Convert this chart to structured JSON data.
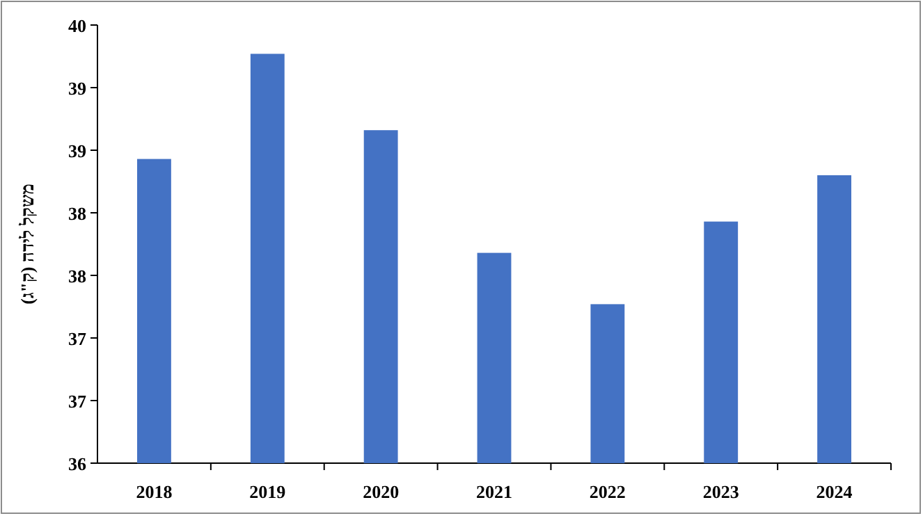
{
  "chart_data": {
    "type": "bar",
    "ylabel": "משקל לידה (ק\"ג)",
    "categories": [
      "2018",
      "2019",
      "2020",
      "2021",
      "2022",
      "2023",
      "2024"
    ],
    "values": [
      38.43,
      39.27,
      38.66,
      37.68,
      37.27,
      37.93,
      38.3
    ],
    "color": "#4472c4",
    "ylim": [
      36,
      39.5
    ],
    "yticks": [
      {
        "value": 36,
        "label": "36"
      },
      {
        "value": 36.5,
        "label": "37"
      },
      {
        "value": 37,
        "label": "37"
      },
      {
        "value": 37.5,
        "label": "38"
      },
      {
        "value": 38,
        "label": "38"
      },
      {
        "value": 38.5,
        "label": "39"
      },
      {
        "value": 39,
        "label": "39"
      },
      {
        "value": 39.5,
        "label": "40"
      }
    ],
    "grid": false
  }
}
